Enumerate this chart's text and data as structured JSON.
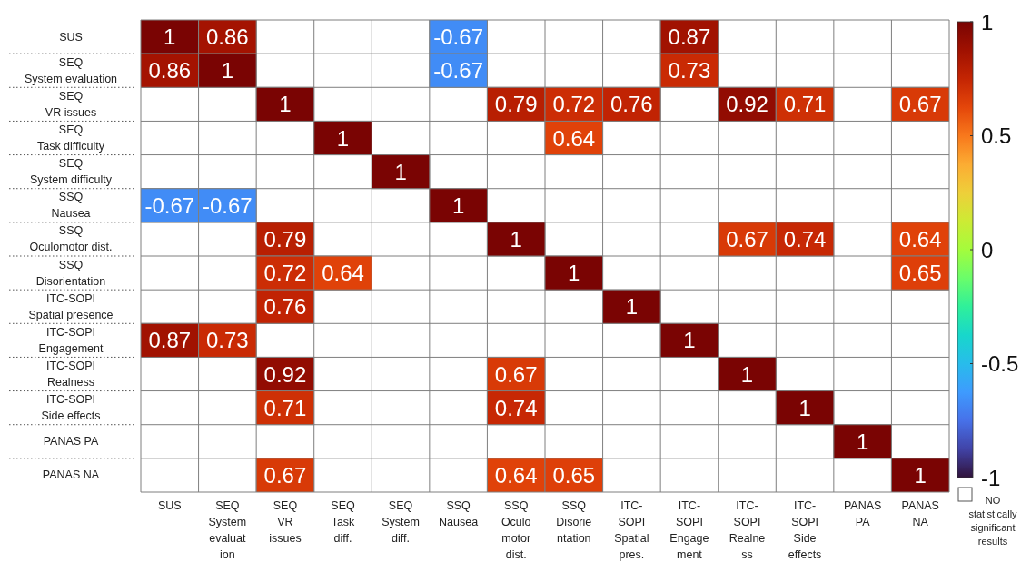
{
  "chart_data": {
    "type": "heatmap",
    "categories": [
      "SUS",
      "SEQ\nSystem\nevaluat\nion",
      "SEQ\nVR\nissues",
      "SEQ\nTask\ndiff.",
      "SEQ\nSystem\ndiff.",
      "SSQ\nNausea",
      "SSQ\nOculo\nmotor\ndist.",
      "SSQ\nDisorie\nntation",
      "ITC-\nSOPI\nSpatial\npres.",
      "ITC-\nSOPI\nEngage\nment",
      "ITC-\nSOPI\nRealne\nss",
      "ITC-\nSOPI\nSide\neffects",
      "PANAS\nPA",
      "PANAS\nNA"
    ],
    "y_categories": [
      "SUS",
      "SEQ\nSystem evaluation",
      "SEQ\nVR issues",
      "SEQ\nTask difficulty",
      "SEQ\nSystem difficulty",
      "SSQ\nNausea",
      "SSQ\nOculomotor dist.",
      "SSQ\nDisorientation",
      "ITC-SOPI\nSpatial presence",
      "ITC-SOPI\nEngagement",
      "ITC-SOPI\nRealness",
      "ITC-SOPI\nSide effects",
      "PANAS PA",
      "PANAS NA"
    ],
    "cells": [
      [
        1,
        0.86,
        null,
        null,
        null,
        -0.67,
        null,
        null,
        null,
        0.87,
        null,
        null,
        null,
        null
      ],
      [
        0.86,
        1,
        null,
        null,
        null,
        -0.67,
        null,
        null,
        null,
        0.73,
        null,
        null,
        null,
        null
      ],
      [
        null,
        null,
        1,
        null,
        null,
        null,
        0.79,
        0.72,
        0.76,
        null,
        0.92,
        0.71,
        null,
        0.67
      ],
      [
        null,
        null,
        null,
        1,
        null,
        null,
        null,
        0.64,
        null,
        null,
        null,
        null,
        null,
        null
      ],
      [
        null,
        null,
        null,
        null,
        1,
        null,
        null,
        null,
        null,
        null,
        null,
        null,
        null,
        null
      ],
      [
        -0.67,
        -0.67,
        null,
        null,
        null,
        1,
        null,
        null,
        null,
        null,
        null,
        null,
        null,
        null
      ],
      [
        null,
        null,
        0.79,
        null,
        null,
        null,
        1,
        null,
        null,
        null,
        0.67,
        0.74,
        null,
        0.64
      ],
      [
        null,
        null,
        0.72,
        0.64,
        null,
        null,
        null,
        1,
        null,
        null,
        null,
        null,
        null,
        0.65
      ],
      [
        null,
        null,
        0.76,
        null,
        null,
        null,
        null,
        null,
        1,
        null,
        null,
        null,
        null,
        null
      ],
      [
        0.87,
        0.73,
        null,
        null,
        null,
        null,
        null,
        null,
        null,
        1,
        null,
        null,
        null,
        null
      ],
      [
        null,
        null,
        0.92,
        null,
        null,
        null,
        0.67,
        null,
        null,
        null,
        1,
        null,
        null,
        null
      ],
      [
        null,
        null,
        0.71,
        null,
        null,
        null,
        0.74,
        null,
        null,
        null,
        null,
        1,
        null,
        null
      ],
      [
        null,
        null,
        null,
        null,
        null,
        null,
        null,
        null,
        null,
        null,
        null,
        null,
        1,
        null
      ],
      [
        null,
        null,
        0.67,
        null,
        null,
        null,
        0.64,
        0.65,
        null,
        null,
        null,
        null,
        null,
        1
      ]
    ],
    "clim": [
      -1,
      1
    ],
    "cticks": [
      -1,
      -0.5,
      0,
      0.5,
      1
    ],
    "data_labels": true,
    "grid": true,
    "annotations": [
      "NO statistically significant results"
    ]
  }
}
